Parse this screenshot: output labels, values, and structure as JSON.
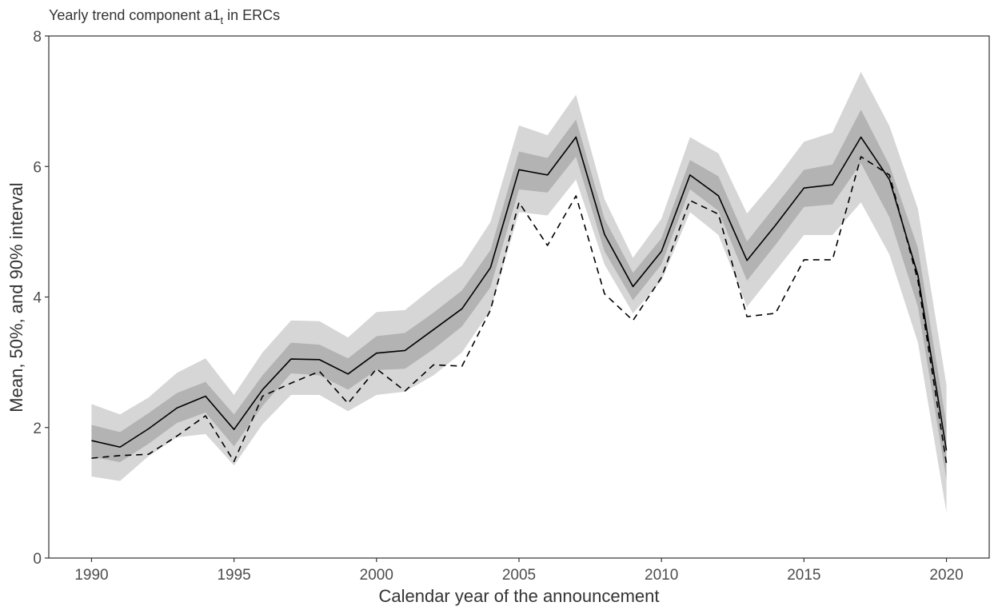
{
  "chart_data": {
    "type": "line",
    "title": "Yearly trend component a1",
    "title_subscript": "t",
    "title_suffix": " in ERCs",
    "xlabel": "Calendar year of the announcement",
    "ylabel": "Mean, 50%, and 90% interval",
    "xlim": [
      1988.5,
      2021.5
    ],
    "ylim": [
      0,
      8
    ],
    "x_ticks": [
      1990,
      1995,
      2000,
      2005,
      2010,
      2015,
      2020
    ],
    "y_ticks": [
      0,
      2,
      4,
      6,
      8
    ],
    "grid": false,
    "x": [
      1990,
      1991,
      1992,
      1993,
      1994,
      1995,
      1996,
      1997,
      1998,
      1999,
      2000,
      2001,
      2002,
      2003,
      2004,
      2005,
      2006,
      2007,
      2008,
      2009,
      2010,
      2011,
      2012,
      2013,
      2014,
      2015,
      2016,
      2017,
      2018,
      2019,
      2020
    ],
    "series": [
      {
        "style": "solid",
        "color": "#000000",
        "values": [
          1.8,
          1.7,
          1.98,
          2.3,
          2.48,
          1.97,
          2.58,
          3.05,
          3.04,
          2.82,
          3.14,
          3.18,
          3.5,
          3.82,
          4.45,
          5.95,
          5.87,
          6.45,
          4.96,
          4.16,
          4.7,
          5.87,
          5.55,
          4.56,
          5.1,
          5.67,
          5.72,
          6.45,
          5.8,
          4.33,
          1.65
        ]
      },
      {
        "style": "dashed",
        "color": "#000000",
        "values": [
          1.53,
          1.57,
          1.59,
          1.87,
          2.18,
          1.48,
          2.48,
          2.68,
          2.86,
          2.37,
          2.9,
          2.56,
          2.96,
          2.94,
          3.8,
          5.45,
          4.79,
          5.55,
          4.05,
          3.64,
          4.3,
          5.48,
          5.27,
          3.7,
          3.75,
          4.57,
          4.57,
          6.15,
          5.87,
          4.25,
          1.45
        ]
      }
    ],
    "bands": [
      {
        "interval": "90%",
        "color": "#d6d6d6",
        "lower": [
          1.25,
          1.18,
          1.56,
          1.85,
          1.9,
          1.42,
          2.05,
          2.5,
          2.5,
          2.25,
          2.5,
          2.55,
          2.8,
          3.15,
          3.8,
          5.3,
          5.25,
          5.8,
          4.5,
          3.75,
          4.25,
          5.3,
          4.95,
          3.85,
          4.4,
          4.95,
          4.95,
          5.45,
          4.65,
          3.3,
          0.7
        ],
        "upper": [
          2.36,
          2.2,
          2.46,
          2.84,
          3.06,
          2.5,
          3.15,
          3.64,
          3.63,
          3.38,
          3.77,
          3.8,
          4.15,
          4.48,
          5.15,
          6.63,
          6.48,
          7.1,
          5.5,
          4.6,
          5.2,
          6.45,
          6.2,
          5.28,
          5.8,
          6.38,
          6.52,
          7.45,
          6.62,
          5.35,
          2.65
        ]
      },
      {
        "interval": "50%",
        "color": "#b3b3b3",
        "lower": [
          1.55,
          1.47,
          1.75,
          2.07,
          2.23,
          1.71,
          2.33,
          2.83,
          2.8,
          2.58,
          2.88,
          2.9,
          3.2,
          3.55,
          4.15,
          5.65,
          5.6,
          6.15,
          4.7,
          3.95,
          4.5,
          5.65,
          5.32,
          4.25,
          4.8,
          5.38,
          5.42,
          6.05,
          5.22,
          3.85,
          1.2
        ],
        "upper": [
          2.04,
          1.93,
          2.22,
          2.53,
          2.7,
          2.2,
          2.8,
          3.3,
          3.27,
          3.06,
          3.4,
          3.45,
          3.76,
          4.1,
          4.72,
          6.23,
          6.13,
          6.72,
          5.2,
          4.37,
          4.9,
          6.1,
          5.85,
          4.85,
          5.4,
          5.95,
          6.03,
          6.87,
          6.02,
          4.75,
          2.05
        ]
      }
    ],
    "legend": "none"
  }
}
